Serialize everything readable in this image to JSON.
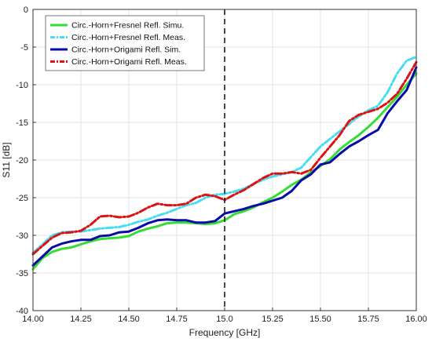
{
  "chart_data": {
    "type": "line",
    "xlabel": "Frequency [GHz]",
    "ylabel": "S11 [dB]",
    "xlim": [
      14.0,
      16.0
    ],
    "ylim": [
      -40,
      0
    ],
    "xticks": [
      "14.00",
      "14.25",
      "14.50",
      "14.75",
      "15.0",
      "15.25",
      "15.50",
      "15.75",
      "16.00"
    ],
    "yticks": [
      "0",
      "-5",
      "-10",
      "-15",
      "-20",
      "-25",
      "-30",
      "-35",
      "-40"
    ],
    "grid": true,
    "legend_position": "top-left",
    "vline": {
      "x": 15.0,
      "style": "dashed",
      "color": "#111111"
    },
    "series": [
      {
        "name": "Circ.-Horn+Fresnel Refl. Simu.",
        "color": "#33dd33",
        "dash": "solid",
        "x": [
          14.0,
          14.05,
          14.1,
          14.15,
          14.2,
          14.25,
          14.3,
          14.35,
          14.4,
          14.45,
          14.5,
          14.55,
          14.6,
          14.65,
          14.7,
          14.75,
          14.8,
          14.85,
          14.9,
          14.95,
          15.0,
          15.05,
          15.1,
          15.15,
          15.2,
          15.25,
          15.3,
          15.35,
          15.4,
          15.45,
          15.5,
          15.55,
          15.6,
          15.65,
          15.7,
          15.75,
          15.8,
          15.85,
          15.9,
          15.95,
          16.0
        ],
        "y": [
          -34.5,
          -33.0,
          -32.2,
          -31.8,
          -31.6,
          -31.2,
          -30.8,
          -30.5,
          -30.4,
          -30.3,
          -30.1,
          -29.5,
          -29.1,
          -28.8,
          -28.4,
          -28.3,
          -28.3,
          -28.4,
          -28.5,
          -28.4,
          -28.0,
          -27.2,
          -26.8,
          -26.3,
          -25.6,
          -25.0,
          -24.2,
          -23.3,
          -22.6,
          -21.6,
          -20.8,
          -19.9,
          -18.6,
          -17.6,
          -16.7,
          -15.6,
          -14.4,
          -13.0,
          -11.6,
          -10.0,
          -8.5
        ]
      },
      {
        "name": "Circ.-Horn+Fresnel Refl. Meas.",
        "color": "#44ddf2",
        "dash": "dashdot",
        "x": [
          14.0,
          14.05,
          14.1,
          14.15,
          14.2,
          14.25,
          14.3,
          14.35,
          14.4,
          14.45,
          14.5,
          14.55,
          14.6,
          14.65,
          14.7,
          14.75,
          14.8,
          14.85,
          14.9,
          14.95,
          15.0,
          15.05,
          15.1,
          15.15,
          15.2,
          15.25,
          15.3,
          15.35,
          15.4,
          15.45,
          15.5,
          15.55,
          15.6,
          15.65,
          15.7,
          15.75,
          15.8,
          15.85,
          15.9,
          15.95,
          16.0
        ],
        "y": [
          -32.3,
          -31.2,
          -30.0,
          -29.6,
          -29.5,
          -29.5,
          -29.3,
          -29.1,
          -29.0,
          -28.9,
          -28.6,
          -28.2,
          -27.9,
          -27.4,
          -27.0,
          -26.5,
          -26.0,
          -25.7,
          -25.0,
          -24.6,
          -24.5,
          -24.2,
          -23.8,
          -23.2,
          -22.6,
          -22.2,
          -21.9,
          -21.6,
          -21.0,
          -19.6,
          -18.2,
          -17.2,
          -16.2,
          -15.2,
          -14.2,
          -13.4,
          -12.8,
          -11.0,
          -8.5,
          -6.8,
          -6.3
        ]
      },
      {
        "name": "Circ.-Horn+Origami Refl. Sim.",
        "color": "#0a0aa8",
        "dash": "solid",
        "x": [
          14.0,
          14.05,
          14.1,
          14.15,
          14.2,
          14.25,
          14.3,
          14.35,
          14.4,
          14.45,
          14.5,
          14.55,
          14.6,
          14.65,
          14.7,
          14.75,
          14.8,
          14.85,
          14.9,
          14.95,
          15.0,
          15.05,
          15.1,
          15.15,
          15.2,
          15.25,
          15.3,
          15.35,
          15.4,
          15.45,
          15.5,
          15.55,
          15.6,
          15.65,
          15.7,
          15.75,
          15.8,
          15.85,
          15.9,
          15.95,
          16.0
        ],
        "y": [
          -34.0,
          -32.8,
          -31.6,
          -31.1,
          -30.8,
          -30.6,
          -30.6,
          -30.1,
          -30.0,
          -29.6,
          -29.5,
          -29.0,
          -28.4,
          -28.0,
          -27.9,
          -28.0,
          -28.0,
          -28.3,
          -28.3,
          -28.1,
          -27.1,
          -26.8,
          -26.5,
          -26.1,
          -25.8,
          -25.4,
          -25.0,
          -24.1,
          -22.7,
          -21.9,
          -20.6,
          -20.3,
          -19.2,
          -18.2,
          -17.5,
          -16.7,
          -16.0,
          -13.8,
          -12.2,
          -10.7,
          -7.7
        ]
      },
      {
        "name": "Circ.-Horn+Origami Refl. Meas.",
        "color": "#dd1111",
        "dash": "dashdot",
        "x": [
          14.0,
          14.05,
          14.1,
          14.15,
          14.2,
          14.25,
          14.3,
          14.35,
          14.4,
          14.45,
          14.5,
          14.55,
          14.6,
          14.65,
          14.7,
          14.75,
          14.8,
          14.85,
          14.9,
          14.95,
          15.0,
          15.05,
          15.1,
          15.15,
          15.2,
          15.25,
          15.3,
          15.35,
          15.4,
          15.45,
          15.5,
          15.55,
          15.6,
          15.65,
          15.7,
          15.75,
          15.8,
          15.85,
          15.9,
          15.95,
          16.0
        ],
        "y": [
          -32.5,
          -31.4,
          -30.3,
          -29.7,
          -29.6,
          -29.4,
          -28.6,
          -27.5,
          -27.4,
          -27.6,
          -27.5,
          -27.0,
          -26.3,
          -25.8,
          -26.0,
          -26.0,
          -25.8,
          -25.0,
          -24.6,
          -24.8,
          -25.3,
          -24.6,
          -24.0,
          -23.2,
          -22.4,
          -21.8,
          -21.8,
          -21.6,
          -21.8,
          -21.3,
          -19.7,
          -18.2,
          -16.7,
          -14.8,
          -14.0,
          -13.6,
          -13.2,
          -12.4,
          -11.2,
          -9.2,
          -7.0
        ]
      }
    ]
  }
}
